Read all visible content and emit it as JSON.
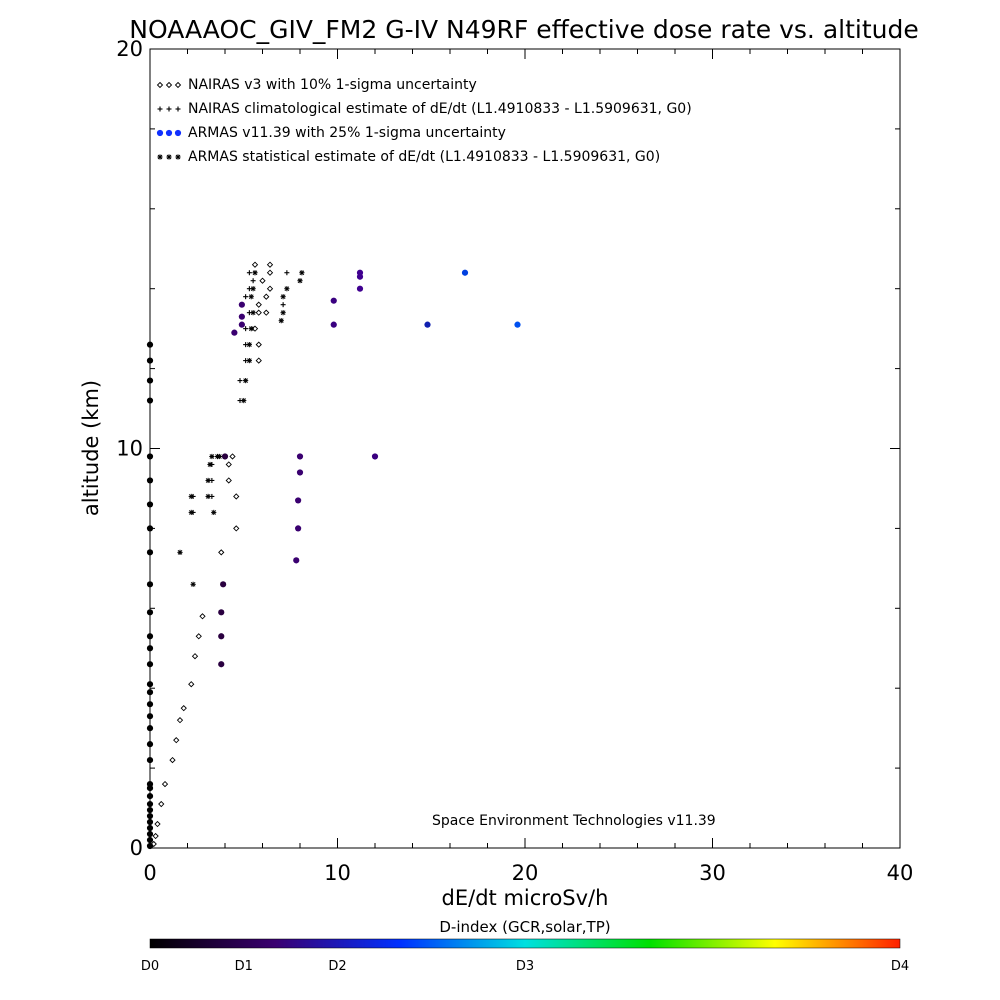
{
  "chart_data": {
    "type": "scatter",
    "title": "NOAAAOC_GIV_FM2 G-IV   N49RF  effective dose rate vs. altitude",
    "xlabel": "dE/dt microSv/h",
    "ylabel": "altitude (km)",
    "xlim": [
      0,
      40
    ],
    "ylim": [
      0,
      20
    ],
    "x_ticks": [
      "0",
      "10",
      "20",
      "30",
      "40"
    ],
    "y_ticks": [
      "0",
      "10",
      "20"
    ],
    "grid": false,
    "legend_position": "top-left",
    "annotation": "Space Environment Technologies v11.39",
    "colorbar": {
      "title": "D-index (GCR,solar,TP)",
      "labels": [
        "D0",
        "D1",
        "D2",
        "D3",
        "D4"
      ],
      "label_positions": [
        0,
        0.125,
        0.25,
        0.5,
        1.0
      ],
      "colors": [
        "#000000",
        "#3a0070",
        "#0030ff",
        "#00e0e0",
        "#00e000",
        "#ffff00",
        "#ff2000"
      ]
    },
    "series": [
      {
        "name": "NAIRAS v3 with 10% 1-sigma uncertainty",
        "marker": "diamond",
        "color": "#000000",
        "points": [
          [
            0.2,
            0.1
          ],
          [
            0.3,
            0.3
          ],
          [
            0.4,
            0.6
          ],
          [
            0.6,
            1.1
          ],
          [
            0.8,
            1.6
          ],
          [
            1.2,
            2.2
          ],
          [
            1.4,
            2.7
          ],
          [
            1.6,
            3.2
          ],
          [
            1.8,
            3.5
          ],
          [
            2.2,
            4.1
          ],
          [
            2.4,
            4.8
          ],
          [
            2.6,
            5.3
          ],
          [
            2.8,
            5.8
          ],
          [
            3.8,
            7.4
          ],
          [
            4.6,
            8.0
          ],
          [
            4.6,
            8.8
          ],
          [
            4.2,
            9.2
          ],
          [
            4.2,
            9.6
          ],
          [
            4.4,
            9.8
          ],
          [
            5.8,
            12.2
          ],
          [
            5.8,
            12.6
          ],
          [
            5.6,
            13.0
          ],
          [
            6.2,
            13.4
          ],
          [
            5.8,
            13.4
          ],
          [
            5.8,
            13.6
          ],
          [
            6.2,
            13.8
          ],
          [
            6.4,
            14.0
          ],
          [
            6.0,
            14.2
          ],
          [
            6.4,
            14.4
          ],
          [
            6.4,
            14.6
          ],
          [
            5.6,
            14.6
          ]
        ]
      },
      {
        "name": "NAIRAS climatological estimate of dE/dt (L1.4910833 - L1.5909631, G0)",
        "marker": "plus",
        "color": "#000000",
        "points": [
          [
            4.8,
            11.2
          ],
          [
            4.8,
            11.7
          ],
          [
            5.1,
            12.2
          ],
          [
            5.1,
            12.6
          ],
          [
            5.1,
            13.0
          ],
          [
            5.3,
            13.4
          ],
          [
            5.1,
            13.8
          ],
          [
            5.3,
            14.0
          ],
          [
            5.5,
            14.2
          ],
          [
            5.3,
            14.4
          ],
          [
            3.3,
            8.8
          ],
          [
            3.3,
            9.2
          ],
          [
            3.3,
            9.6
          ],
          [
            2.3,
            8.4
          ],
          [
            2.3,
            8.8
          ],
          [
            7.3,
            14.4
          ],
          [
            7.1,
            13.6
          ]
        ]
      },
      {
        "name": "ARMAS v11.39 with 25% 1-sigma uncertainty",
        "marker": "dot",
        "color": "#1030ff",
        "points": [
          [
            0,
            0.05
          ],
          [
            0,
            0.2
          ],
          [
            0,
            0.35
          ],
          [
            0,
            0.5
          ],
          [
            0,
            0.65
          ],
          [
            0,
            0.8
          ],
          [
            0,
            0.95
          ],
          [
            0,
            1.1
          ],
          [
            0,
            1.3
          ],
          [
            0,
            1.5
          ],
          [
            0,
            1.6
          ],
          [
            0,
            2.2
          ],
          [
            0,
            2.6
          ],
          [
            0,
            3.0
          ],
          [
            0,
            3.3
          ],
          [
            0,
            3.6
          ],
          [
            0,
            3.9
          ],
          [
            0,
            4.1
          ],
          [
            0,
            4.6
          ],
          [
            0,
            5.0
          ],
          [
            0,
            5.3
          ],
          [
            0,
            5.9
          ],
          [
            0,
            6.6
          ],
          [
            0,
            7.4
          ],
          [
            0,
            8.0
          ],
          [
            0,
            8.6
          ],
          [
            0,
            9.2
          ],
          [
            0,
            9.8
          ],
          [
            0,
            11.2
          ],
          [
            0,
            11.7
          ],
          [
            0,
            12.2
          ],
          [
            0,
            12.6
          ],
          [
            3.8,
            4.6
          ],
          [
            3.8,
            5.3
          ],
          [
            3.8,
            5.9
          ],
          [
            3.9,
            6.6
          ],
          [
            7.8,
            7.2
          ],
          [
            7.9,
            8.0
          ],
          [
            7.9,
            8.7
          ],
          [
            8.0,
            9.4
          ],
          [
            8.0,
            9.8
          ],
          [
            4.0,
            9.8
          ],
          [
            4.5,
            12.9
          ],
          [
            4.9,
            13.1
          ],
          [
            4.9,
            13.3
          ],
          [
            4.9,
            13.6
          ],
          [
            9.8,
            13.1
          ],
          [
            9.8,
            13.7
          ],
          [
            11.2,
            14.0
          ],
          [
            11.2,
            14.3
          ],
          [
            11.2,
            14.4
          ],
          [
            12.0,
            9.8
          ],
          [
            14.8,
            13.1
          ],
          [
            16.8,
            14.4
          ],
          [
            19.6,
            13.1
          ]
        ],
        "point_colors": [
          "#000000",
          "#000000",
          "#000000",
          "#000000",
          "#000000",
          "#000000",
          "#000000",
          "#000000",
          "#000000",
          "#000000",
          "#000000",
          "#000000",
          "#000000",
          "#000000",
          "#000000",
          "#000000",
          "#000000",
          "#000000",
          "#000000",
          "#000000",
          "#000000",
          "#000000",
          "#000000",
          "#000000",
          "#000000",
          "#000000",
          "#000000",
          "#000000",
          "#000000",
          "#000000",
          "#000000",
          "#000000",
          "#2a0040",
          "#2a0040",
          "#2a0040",
          "#2a0040",
          "#3a0070",
          "#3a0070",
          "#3a0070",
          "#3a0070",
          "#3a0070",
          "#2a0040",
          "#3a0070",
          "#3a0070",
          "#3a0070",
          "#3a0070",
          "#3a0080",
          "#3a0080",
          "#400090",
          "#400090",
          "#400090",
          "#3a0080",
          "#1020b0",
          "#0040e0",
          "#0050f0"
        ]
      },
      {
        "name": "ARMAS statistical estimate of dE/dt (L1.4910833 - L1.5909631, G0)",
        "marker": "asterisk",
        "color": "#000000",
        "points": [
          [
            5.0,
            11.2
          ],
          [
            5.1,
            11.7
          ],
          [
            5.3,
            12.2
          ],
          [
            5.3,
            12.6
          ],
          [
            5.4,
            13.0
          ],
          [
            5.5,
            13.4
          ],
          [
            5.4,
            13.8
          ],
          [
            5.5,
            14.0
          ],
          [
            5.6,
            14.4
          ],
          [
            7.0,
            13.2
          ],
          [
            7.1,
            13.4
          ],
          [
            7.1,
            13.8
          ],
          [
            7.3,
            14.0
          ],
          [
            8.0,
            14.2
          ],
          [
            8.1,
            14.4
          ],
          [
            3.1,
            8.8
          ],
          [
            3.1,
            9.2
          ],
          [
            3.2,
            9.6
          ],
          [
            3.3,
            9.8
          ],
          [
            3.7,
            9.8
          ],
          [
            2.2,
            8.4
          ],
          [
            2.2,
            8.8
          ],
          [
            1.6,
            7.4
          ],
          [
            2.3,
            6.6
          ],
          [
            3.6,
            9.8
          ],
          [
            3.4,
            8.4
          ]
        ]
      }
    ]
  }
}
